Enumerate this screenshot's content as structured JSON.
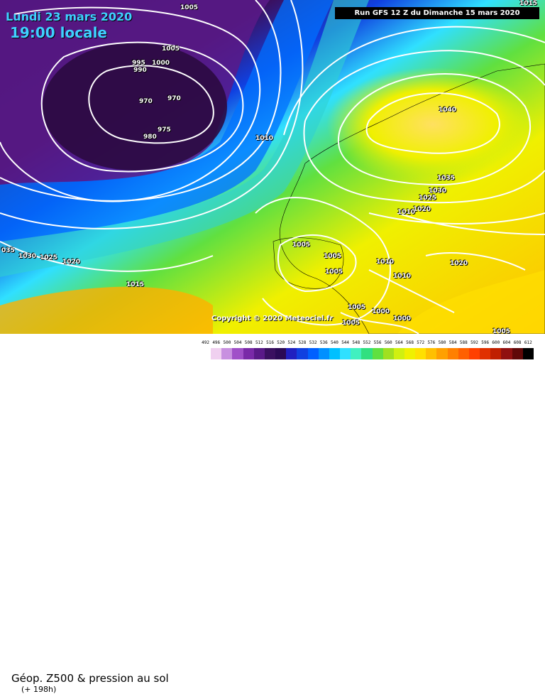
{
  "header": {
    "date": "Lundi 23 mars 2020",
    "time": "19:00 locale",
    "run": "Run GFS 12 Z du Dimanche 15 mars 2020"
  },
  "copyright": "Copyright © 2020 Meteociel.fr",
  "legend": {
    "title": "Géop. Z500 & pression au sol",
    "subtitle": "(+ 198h)",
    "scale_values": [
      "492",
      "496",
      "500",
      "504",
      "508",
      "512",
      "516",
      "520",
      "524",
      "528",
      "532",
      "536",
      "540",
      "544",
      "548",
      "552",
      "556",
      "560",
      "564",
      "568",
      "572",
      "576",
      "580",
      "584",
      "588",
      "592",
      "596",
      "600",
      "604",
      "608",
      "612"
    ],
    "scale_colors": [
      "#ffffff",
      "#f0d0f0",
      "#c890e0",
      "#a050c8",
      "#7a2aa8",
      "#5a1a88",
      "#3a1060",
      "#2b0a55",
      "#2020c0",
      "#1040e0",
      "#0060ff",
      "#0090ff",
      "#00c0ff",
      "#30e0ff",
      "#40f0c0",
      "#30e080",
      "#60e040",
      "#a0e020",
      "#d0f010",
      "#f0f000",
      "#ffe000",
      "#ffc000",
      "#ffa000",
      "#ff8000",
      "#ff6000",
      "#ff4000",
      "#e03000",
      "#c02000",
      "#901010",
      "#600808",
      "#000000"
    ]
  },
  "isobars": [
    {
      "label": "1005",
      "tag": "top-1005-a"
    },
    {
      "label": "1005",
      "tag": "north-1005"
    },
    {
      "label": "995",
      "tag": "low-995"
    },
    {
      "label": "1000",
      "tag": "low-1000"
    },
    {
      "label": "990",
      "tag": "low-990"
    },
    {
      "label": "970",
      "tag": "low-970-a"
    },
    {
      "label": "970",
      "tag": "low-970-b"
    },
    {
      "label": "975",
      "tag": "low-975"
    },
    {
      "label": "980",
      "tag": "low-980"
    },
    {
      "label": "1010",
      "tag": "atl-1010"
    },
    {
      "label": "1040",
      "tag": "high-1040"
    },
    {
      "label": "1035",
      "tag": "high-1035"
    },
    {
      "label": "1030",
      "tag": "high-1030"
    },
    {
      "label": "1025",
      "tag": "high-1025"
    },
    {
      "label": "1020",
      "tag": "east-1020"
    },
    {
      "label": "1010",
      "tag": "east-1010"
    },
    {
      "label": "1005",
      "tag": "iberia-1005-a"
    },
    {
      "label": "1005",
      "tag": "iberia-1005-b"
    },
    {
      "label": "1005",
      "tag": "iberia-1005-c"
    },
    {
      "label": "1010",
      "tag": "med-1010-a"
    },
    {
      "label": "1010",
      "tag": "med-1010-b"
    },
    {
      "label": "1020",
      "tag": "balkan-1020"
    },
    {
      "label": "035",
      "tag": "west-1035"
    },
    {
      "label": "1030",
      "tag": "west-1030"
    },
    {
      "label": "1025",
      "tag": "west-1025"
    },
    {
      "label": "1020",
      "tag": "west-1020"
    },
    {
      "label": "1015",
      "tag": "atl-1015"
    },
    {
      "label": "1005",
      "tag": "med-1005-a"
    },
    {
      "label": "1000",
      "tag": "med-1000"
    },
    {
      "label": "1000",
      "tag": "med-1000-b"
    },
    {
      "label": "1005",
      "tag": "med-1005-b"
    },
    {
      "label": "1005",
      "tag": "se-1005"
    },
    {
      "label": "1015",
      "tag": "top-right-1015"
    }
  ]
}
